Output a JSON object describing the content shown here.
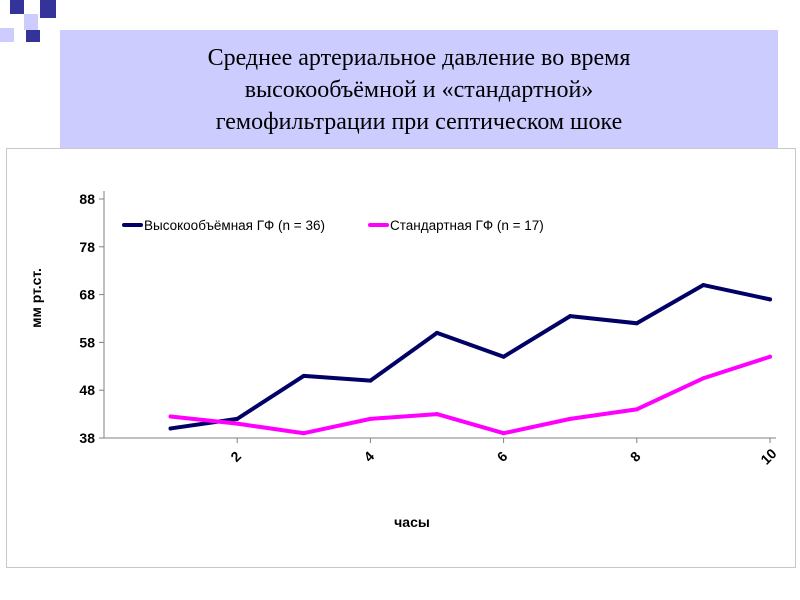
{
  "slide": {
    "title_lines": [
      "Среднее артериальное давление во время",
      "высокообъёмной и «стандартной»",
      "гемофильтрации при септическом шоке"
    ]
  },
  "colors": {
    "title_bg": "#ccccff",
    "deco_navy": "#333399",
    "deco_light": "#ccccff"
  },
  "chart_data": {
    "type": "line",
    "title": "",
    "xlabel": "часы",
    "ylabel": "мм рт.ст.",
    "x": [
      1,
      2,
      3,
      4,
      5,
      6,
      7,
      8,
      9,
      10
    ],
    "xticks": [
      "2",
      "4",
      "6",
      "8",
      "10"
    ],
    "xtick_values": [
      2,
      4,
      6,
      8,
      10
    ],
    "xlim": [
      0,
      10
    ],
    "yticks": [
      "38",
      "48",
      "58",
      "68",
      "78",
      "88"
    ],
    "ylim": [
      38,
      88
    ],
    "grid": false,
    "legend_position": "top",
    "series": [
      {
        "name": "Высокообъёмная ГФ (n = 36)",
        "color": "#000066",
        "values": [
          40,
          42,
          51,
          50,
          60,
          55,
          63.5,
          62,
          70,
          67
        ]
      },
      {
        "name": "Стандартная ГФ (n = 17)",
        "color": "#ff00ff",
        "values": [
          42.5,
          41,
          39,
          42,
          43,
          39,
          42,
          44,
          50.5,
          55
        ]
      }
    ]
  }
}
